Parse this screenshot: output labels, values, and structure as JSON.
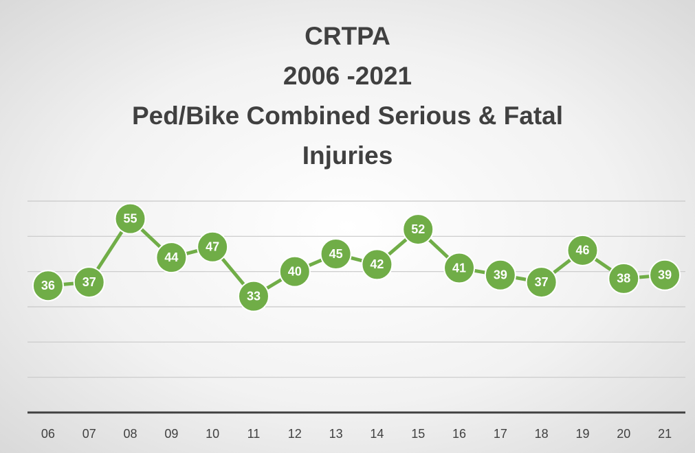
{
  "chart_data": {
    "type": "line",
    "title": [
      "CRTPA",
      "2006 -2021",
      "Ped/Bike Combined Serious & Fatal Injuries"
    ],
    "categories": [
      "06",
      "07",
      "08",
      "09",
      "10",
      "11",
      "12",
      "13",
      "14",
      "15",
      "16",
      "17",
      "18",
      "19",
      "20",
      "21"
    ],
    "values": [
      36,
      37,
      55,
      44,
      47,
      33,
      40,
      45,
      42,
      52,
      41,
      39,
      37,
      46,
      38,
      39
    ],
    "color": "#70ad47",
    "ylim": [
      0,
      60
    ],
    "yticks": [
      0,
      10,
      20,
      30,
      40,
      50,
      60
    ],
    "grid": true
  }
}
